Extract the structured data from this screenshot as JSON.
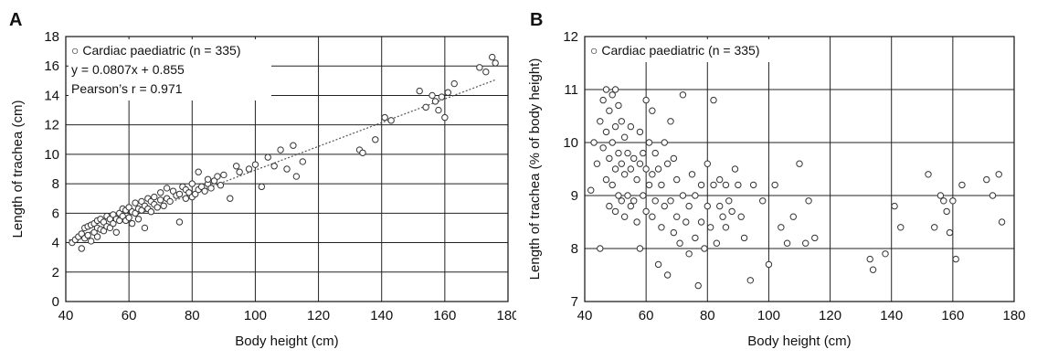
{
  "chart_data": [
    {
      "panel_label": "A",
      "type": "scatter",
      "xlabel": "Body height (cm)",
      "ylabel": "Length of trachea (cm)",
      "xlim": [
        40,
        180
      ],
      "ylim": [
        0,
        18
      ],
      "xticks": [
        "40",
        "60",
        "80",
        "100",
        "120",
        "140",
        "160",
        "180"
      ],
      "yticks": [
        "0",
        "2",
        "4",
        "6",
        "8",
        "10",
        "12",
        "14",
        "16",
        "18"
      ],
      "grid": true,
      "legend": "○ Cardiac paediatric (n = 335)",
      "annotations": [
        "y = 0.0807x + 0.855",
        "Pearson’s r = 0.971"
      ],
      "fit_line": {
        "slope": 0.0807,
        "intercept": 0.855,
        "x_range": [
          41,
          176
        ]
      },
      "series": [
        {
          "marker": "open-circle",
          "x": [
            42,
            43,
            44,
            45,
            45,
            46,
            46,
            47,
            47,
            48,
            48,
            49,
            49,
            50,
            50,
            50,
            51,
            51,
            52,
            52,
            53,
            53,
            54,
            54,
            55,
            55,
            56,
            56,
            57,
            57,
            58,
            58,
            59,
            59,
            60,
            60,
            61,
            61,
            62,
            62,
            63,
            63,
            64,
            64,
            65,
            65,
            66,
            66,
            67,
            67,
            68,
            68,
            69,
            70,
            70,
            71,
            72,
            72,
            73,
            74,
            75,
            76,
            76,
            77,
            78,
            78,
            79,
            80,
            80,
            81,
            82,
            82,
            83,
            84,
            85,
            85,
            86,
            87,
            88,
            89,
            90,
            92,
            94,
            95,
            98,
            100,
            102,
            104,
            106,
            108,
            110,
            112,
            113,
            115,
            133,
            134,
            138,
            141,
            143,
            152,
            154,
            156,
            157,
            158,
            159,
            160,
            161,
            163,
            171,
            173,
            175,
            176
          ],
          "y": [
            4.0,
            4.2,
            4.4,
            3.6,
            4.6,
            4.3,
            5.0,
            4.5,
            5.1,
            4.1,
            5.2,
            4.7,
            5.3,
            4.4,
            5.0,
            5.5,
            4.9,
            5.6,
            4.8,
            5.4,
            5.1,
            5.8,
            5.0,
            5.6,
            5.3,
            5.9,
            4.7,
            5.6,
            5.5,
            6.0,
            5.8,
            6.3,
            5.5,
            6.2,
            5.7,
            6.4,
            5.3,
            6.1,
            6.0,
            6.7,
            5.6,
            6.3,
            6.2,
            6.8,
            5.0,
            6.5,
            6.3,
            7.0,
            6.1,
            6.8,
            6.6,
            7.1,
            6.4,
            6.9,
            7.4,
            6.5,
            7.0,
            7.7,
            6.8,
            7.5,
            7.2,
            5.4,
            7.3,
            7.8,
            7.0,
            7.6,
            7.4,
            7.1,
            8.0,
            7.3,
            7.6,
            8.8,
            7.8,
            7.5,
            8.0,
            8.3,
            7.7,
            8.2,
            8.5,
            7.9,
            8.6,
            7.0,
            9.2,
            8.8,
            9.0,
            9.3,
            7.8,
            9.8,
            9.2,
            10.3,
            9.0,
            10.6,
            8.5,
            9.5,
            10.3,
            10.1,
            11.0,
            12.5,
            12.3,
            14.3,
            13.2,
            14.0,
            13.6,
            13.0,
            13.9,
            12.5,
            14.2,
            14.8,
            15.9,
            15.6,
            16.6,
            16.2
          ]
        }
      ]
    },
    {
      "panel_label": "B",
      "type": "scatter",
      "xlabel": "Body height (cm)",
      "ylabel": "Length of trachea (% of body height)",
      "xlim": [
        40,
        180
      ],
      "ylim": [
        7,
        12
      ],
      "xticks": [
        "40",
        "60",
        "80",
        "100",
        "120",
        "140",
        "160",
        "180"
      ],
      "yticks": [
        "7",
        "8",
        "9",
        "10",
        "11",
        "12"
      ],
      "grid": true,
      "legend": "○ Cardiac paediatric (n = 335)",
      "series": [
        {
          "marker": "open-circle",
          "x": [
            42,
            43,
            44,
            45,
            45,
            46,
            46,
            47,
            47,
            47,
            48,
            48,
            48,
            49,
            49,
            49,
            50,
            50,
            50,
            50,
            51,
            51,
            51,
            52,
            52,
            52,
            53,
            53,
            53,
            54,
            54,
            55,
            55,
            55,
            56,
            56,
            57,
            57,
            58,
            58,
            58,
            59,
            59,
            60,
            60,
            60,
            61,
            61,
            62,
            62,
            62,
            63,
            63,
            64,
            64,
            65,
            65,
            66,
            66,
            67,
            67,
            68,
            68,
            69,
            69,
            70,
            70,
            71,
            72,
            72,
            73,
            74,
            74,
            75,
            76,
            76,
            77,
            78,
            78,
            79,
            80,
            80,
            81,
            82,
            82,
            83,
            84,
            84,
            85,
            86,
            86,
            87,
            88,
            89,
            90,
            91,
            92,
            94,
            95,
            98,
            100,
            102,
            104,
            106,
            108,
            110,
            112,
            113,
            115,
            133,
            134,
            138,
            141,
            143,
            152,
            154,
            156,
            157,
            158,
            159,
            160,
            161,
            163,
            171,
            173,
            175,
            176
          ],
          "y": [
            9.1,
            10.0,
            9.6,
            10.4,
            8.0,
            9.9,
            10.8,
            9.3,
            10.2,
            11.0,
            8.8,
            9.7,
            10.6,
            9.2,
            10.0,
            10.9,
            8.7,
            9.5,
            10.3,
            11.0,
            9.0,
            9.8,
            10.7,
            8.9,
            9.6,
            10.4,
            8.6,
            9.4,
            10.1,
            9.0,
            9.8,
            8.8,
            9.5,
            10.3,
            8.9,
            9.7,
            8.5,
            9.3,
            9.6,
            10.2,
            8.0,
            9.0,
            9.8,
            8.7,
            9.5,
            10.8,
            9.2,
            10.0,
            8.6,
            9.4,
            10.6,
            8.9,
            9.8,
            7.7,
            9.5,
            8.4,
            9.2,
            10.0,
            8.8,
            9.6,
            7.5,
            8.9,
            10.4,
            8.3,
            9.7,
            8.6,
            9.3,
            8.1,
            9.0,
            10.9,
            8.5,
            8.8,
            7.9,
            9.4,
            8.2,
            9.0,
            7.3,
            8.5,
            9.2,
            8.0,
            8.8,
            9.6,
            8.4,
            9.2,
            10.8,
            8.1,
            8.8,
            9.3,
            8.6,
            9.2,
            8.4,
            8.9,
            8.7,
            9.5,
            9.2,
            8.6,
            8.2,
            7.4,
            9.2,
            8.9,
            7.7,
            9.2,
            8.4,
            8.1,
            8.6,
            9.6,
            8.1,
            8.9,
            8.2,
            7.8,
            7.6,
            7.9,
            8.8,
            8.4,
            9.4,
            8.4,
            9.0,
            8.9,
            8.7,
            8.3,
            8.9,
            7.8,
            9.2,
            9.3,
            9.0,
            9.4,
            8.5
          ]
        }
      ]
    }
  ]
}
